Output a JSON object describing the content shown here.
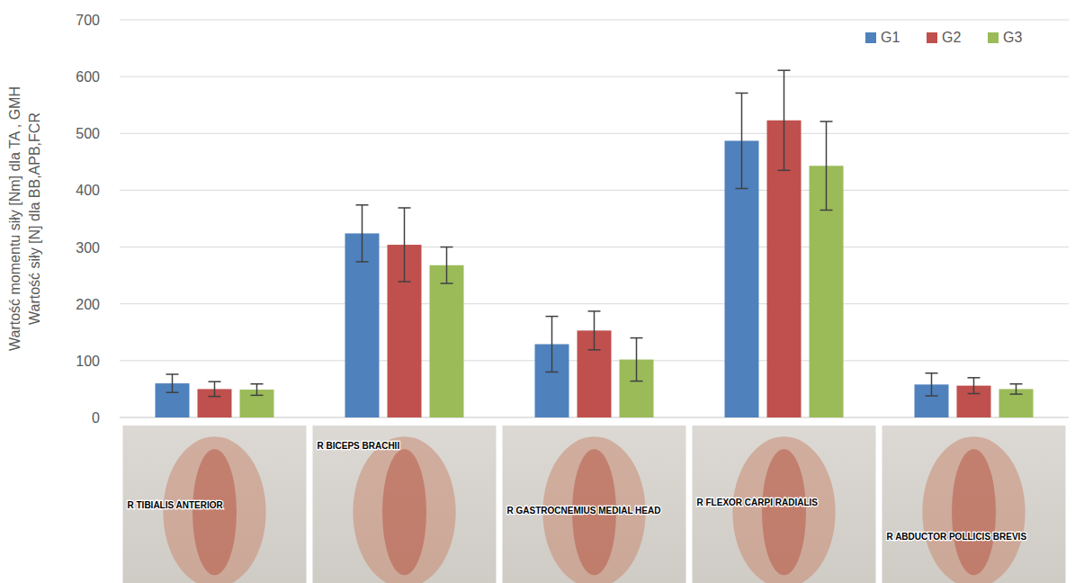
{
  "chart_data": {
    "type": "bar",
    "y_label": [
      "Wartość momentu siły [Nm] dla TA , GMH",
      "Wartość siły [N] dla BB,APB,FCR"
    ],
    "categories": [
      "R TIBIALIS ANTERIOR",
      "R BICEPS BRACHII",
      "R GASTROCNEMIUS MEDIAL HEAD",
      "R FLEXOR CARPI RADIALIS",
      "R ABDUCTOR POLLICIS BREVIS"
    ],
    "series": [
      {
        "name": "G1",
        "color": "#4f81bd",
        "values": [
          60,
          324,
          129,
          487,
          58
        ],
        "errors": [
          16,
          50,
          49,
          84,
          20
        ]
      },
      {
        "name": "G2",
        "color": "#c0504d",
        "values": [
          50,
          304,
          153,
          523,
          56
        ],
        "errors": [
          13,
          65,
          34,
          88,
          14
        ]
      },
      {
        "name": "G3",
        "color": "#9bbb59",
        "values": [
          49,
          268,
          102,
          443,
          50
        ],
        "errors": [
          10,
          32,
          38,
          78,
          9
        ]
      }
    ],
    "ylim": [
      0,
      700
    ],
    "yticks": [
      0,
      100,
      200,
      300,
      400,
      500,
      600,
      700
    ],
    "grid": true,
    "legend": "upper right"
  }
}
